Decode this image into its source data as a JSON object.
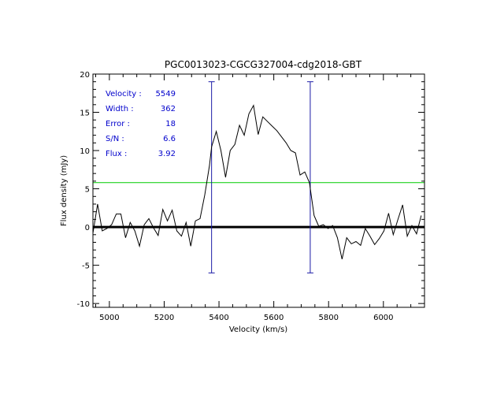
{
  "chart_data": {
    "type": "line",
    "title": "PGC0013023-CGCG327004-cdg2018-GBT",
    "xlabel": "Velocity (km/s)",
    "ylabel": "Flux density (mJy)",
    "xlim": [
      4940,
      6150
    ],
    "ylim": [
      -10.5,
      20
    ],
    "xticks": [
      5000,
      5200,
      5400,
      5600,
      5800,
      6000
    ],
    "xtick_labels": [
      "5000",
      "5200",
      "5400",
      "5600",
      "5800",
      "6000"
    ],
    "yticks": [
      -10,
      -5,
      0,
      5,
      10,
      15,
      20
    ],
    "ytick_labels": [
      "-10",
      "-5",
      "0",
      "5",
      "10",
      "15",
      "20"
    ],
    "grid": false,
    "series": [
      {
        "x": [
          4940,
          4957,
          4974,
          4991,
          5008,
          5025,
          5042,
          5059,
          5076,
          5093,
          5110,
          5127,
          5144,
          5161,
          5178,
          5195,
          5212,
          5229,
          5246,
          5263,
          5280,
          5297,
          5314,
          5331,
          5348,
          5365,
          5373,
          5390,
          5407,
          5424,
          5441,
          5458,
          5475,
          5492,
          5509,
          5526,
          5543,
          5560,
          5577,
          5594,
          5611,
          5628,
          5645,
          5662,
          5679,
          5696,
          5713,
          5730,
          5747,
          5764,
          5781,
          5798,
          5815,
          5832,
          5849,
          5866,
          5883,
          5900,
          5917,
          5934,
          5951,
          5968,
          5985,
          6002,
          6019,
          6036,
          6053,
          6070,
          6087,
          6104,
          6121,
          6138
        ],
        "y": [
          -0.8,
          3.0,
          -0.5,
          -0.2,
          0.3,
          1.7,
          1.7,
          -1.4,
          0.6,
          -0.5,
          -2.5,
          0.3,
          1.1,
          -0.1,
          -1.1,
          2.3,
          0.8,
          2.2,
          -0.5,
          -1.2,
          0.6,
          -2.5,
          0.8,
          1.1,
          4.2,
          8.0,
          10.5,
          12.5,
          10.0,
          6.5,
          10.0,
          10.8,
          13.3,
          12.0,
          14.8,
          15.9,
          12.1,
          14.4,
          13.8,
          13.2,
          12.6,
          11.8,
          11.0,
          10.0,
          9.7,
          6.8,
          7.2,
          5.8,
          1.5,
          0.1,
          0.3,
          -0.2,
          0.2,
          -1.4,
          -4.2,
          -1.4,
          -2.2,
          -1.9,
          -2.4,
          -0.2,
          -1.2,
          -2.3,
          -1.5,
          -0.5,
          1.8,
          -1.0,
          1.0,
          2.9,
          -1.2,
          0.2,
          -0.9,
          1.5
        ]
      }
    ],
    "zero_line": 0,
    "threshold_line": 5.8,
    "markers": [
      5373,
      5733
    ],
    "marker_range": [
      -6,
      19
    ],
    "annotations": [
      {
        "label": "Velocity :",
        "value": "5549"
      },
      {
        "label": "Width :",
        "value": "362"
      },
      {
        "label": "Error :",
        "value": "18"
      },
      {
        "label": "S/N :",
        "value": "6.6"
      },
      {
        "label": "Flux :",
        "value": "3.92"
      }
    ],
    "colors": {
      "spectrum": "#000000",
      "zero_line": "#000000",
      "threshold": "#00cc00",
      "markers": "#1a1aa6",
      "annotation_text": "#0000cc",
      "axes": "#000000"
    }
  }
}
